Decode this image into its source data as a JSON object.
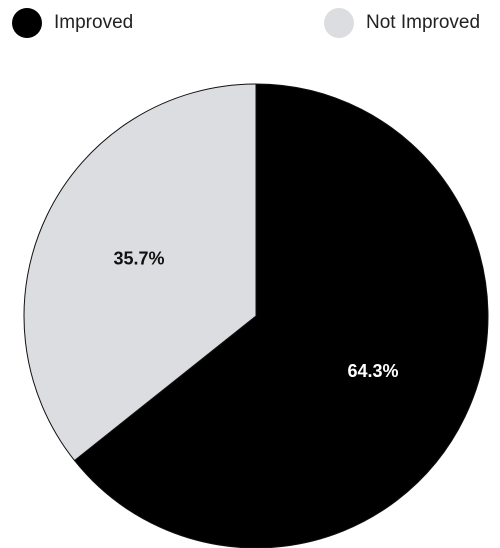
{
  "chart_data": {
    "type": "pie",
    "title": "",
    "legend_position": "top",
    "slices": [
      {
        "label": "Improved",
        "value": 64.3,
        "display": "64.3%",
        "color": "#000000",
        "label_color": "#ffffff"
      },
      {
        "label": "Not Improved",
        "value": 35.7,
        "display": "35.7%",
        "color": "#dcdde0",
        "label_color": "#111111"
      }
    ]
  }
}
